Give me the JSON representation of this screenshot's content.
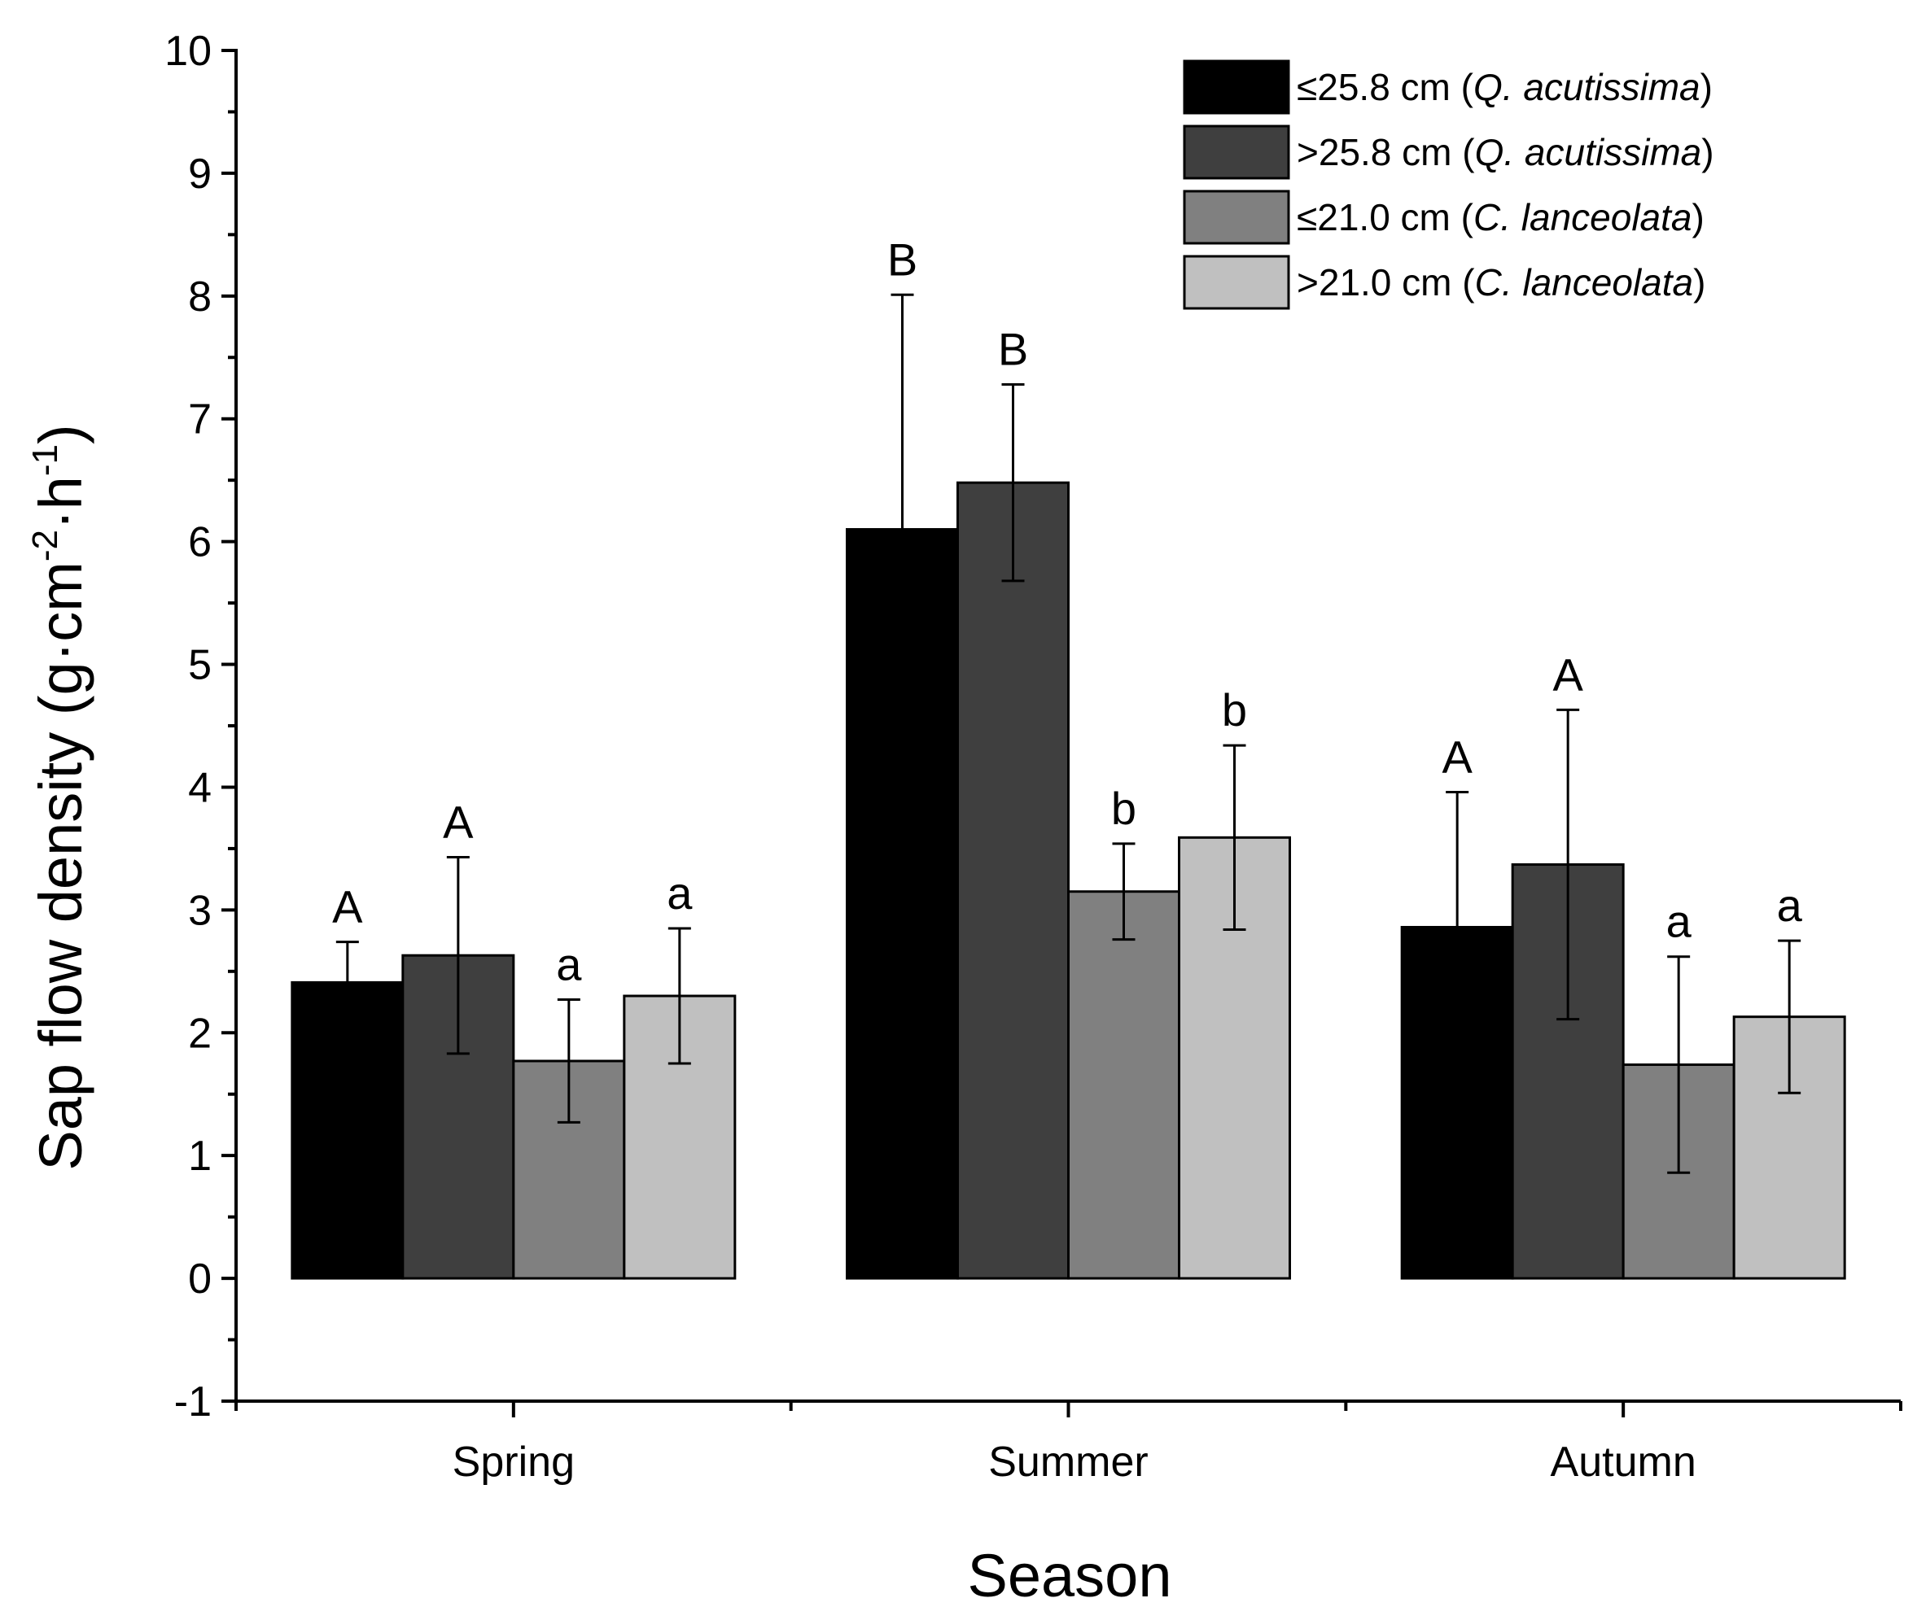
{
  "chart_data": {
    "type": "bar",
    "xlabel": "Season",
    "ylabel": "Sap flow density (g·cm⁻²·h⁻¹)",
    "ylabel_parts": {
      "main": "Sap flow density (g·cm",
      "sup1": "-2",
      "mid": "·h",
      "sup2": "-1",
      "end": ")"
    },
    "ylim": [
      -1,
      10
    ],
    "yticks": [
      -1,
      0,
      1,
      2,
      3,
      4,
      5,
      6,
      7,
      8,
      9,
      10
    ],
    "categories": [
      "Spring",
      "Summer",
      "Autumn"
    ],
    "series": [
      {
        "name": "≤25.8 cm (Q. acutissima)",
        "label_main": "≤25.8 cm (",
        "label_italic": "Q. acutissima",
        "label_end": ")",
        "color": "#000000",
        "values": [
          2.41,
          6.1,
          2.86
        ],
        "errors": [
          0.33,
          1.91,
          1.1
        ],
        "letters": [
          "A",
          "B",
          "A"
        ]
      },
      {
        "name": ">25.8 cm (Q. acutissima)",
        "label_main": ">25.8 cm (",
        "label_italic": "Q. acutissima",
        "label_end": ")",
        "color": "#3f3f3f",
        "values": [
          2.63,
          6.48,
          3.37
        ],
        "errors": [
          0.8,
          0.8,
          1.26
        ],
        "letters": [
          "A",
          "B",
          "A"
        ]
      },
      {
        "name": "≤21.0 cm (C. lanceolata)",
        "label_main": "≤21.0 cm (",
        "label_italic": "C. lanceolata",
        "label_end": ")",
        "color": "#808080",
        "values": [
          1.77,
          3.15,
          1.74
        ],
        "errors": [
          0.5,
          0.39,
          0.88
        ],
        "letters": [
          "a",
          "b",
          "a"
        ]
      },
      {
        "name": ">21.0 cm (C. lanceolata)",
        "label_main": ">21.0 cm (",
        "label_italic": "C. lanceolata",
        "label_end": ")",
        "color": "#c0c0c0",
        "values": [
          2.3,
          3.59,
          2.13
        ],
        "errors": [
          0.55,
          0.75,
          0.62
        ],
        "letters": [
          "a",
          "b",
          "a"
        ]
      }
    ],
    "legend_position": "top-right"
  }
}
